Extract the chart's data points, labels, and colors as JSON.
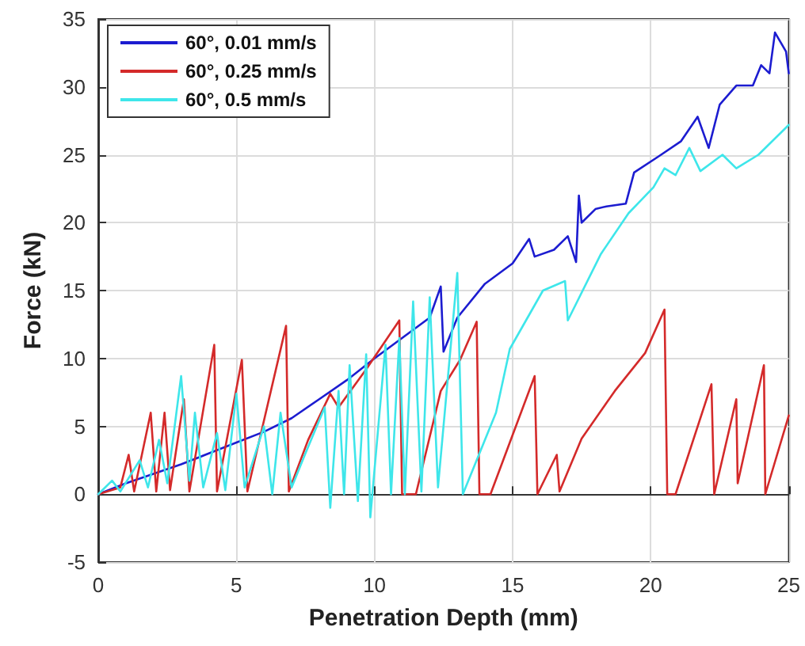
{
  "chart_data": {
    "type": "line",
    "xlabel": "Penetration Depth (mm)",
    "ylabel": "Force (kN)",
    "xlim": [
      0,
      25
    ],
    "xticks": [
      0,
      5,
      10,
      15,
      20,
      25
    ],
    "ylim": [
      -5,
      35
    ],
    "yticks": [
      -5,
      0,
      5,
      10,
      15,
      20,
      25,
      30,
      35
    ],
    "grid": true,
    "legend": "top left",
    "marker": "none",
    "line_style": "solid",
    "series": [
      {
        "name": "60°, 0.01 mm/s",
        "color": "#1c1cd0",
        "x": [
          0,
          1,
          2,
          3,
          4,
          5,
          6,
          7,
          8,
          9,
          10,
          11,
          12,
          12.4,
          12.5,
          13,
          14,
          15,
          15.6,
          15.8,
          16.5,
          17,
          17.3,
          17.4,
          17.5,
          18,
          18.4,
          19.1,
          19.4,
          20.3,
          21.1,
          21.7,
          22.1,
          22.5,
          23.1,
          23.7,
          24,
          24.3,
          24.5,
          24.9,
          25
        ],
        "values": [
          0,
          0.8,
          1.5,
          2.2,
          3,
          3.8,
          4.6,
          5.6,
          7,
          8.4,
          10,
          11.5,
          13,
          15.3,
          10.5,
          13,
          15.5,
          17,
          18.8,
          17.5,
          18,
          19,
          17.1,
          22,
          20,
          21,
          21.2,
          21.4,
          23.7,
          24.9,
          26,
          27.8,
          25.5,
          28.7,
          30.1,
          30.1,
          31.6,
          31,
          34,
          32.6,
          31
        ]
      },
      {
        "name": "60°, 0.25 mm/s",
        "color": "#d42a2a",
        "x": [
          0,
          0.8,
          1.1,
          1.3,
          1.9,
          2.1,
          2.4,
          2.6,
          3.1,
          3.3,
          4.2,
          4.3,
          5.2,
          5.4,
          6.8,
          6.9,
          7.6,
          8.4,
          8.7,
          9.7,
          10.9,
          11,
          11.5,
          12.4,
          13.1,
          13.7,
          13.8,
          14.2,
          15.1,
          15.8,
          15.9,
          16.6,
          16.7,
          17.5,
          18.7,
          19.8,
          20.5,
          20.6,
          20.9,
          22.2,
          22.3,
          23.1,
          23.15,
          24.1,
          24.15,
          25
        ],
        "values": [
          0,
          0.5,
          2.9,
          0.2,
          6,
          0.2,
          6,
          0.3,
          7,
          0.2,
          11,
          0.2,
          9.9,
          0.2,
          12.4,
          0.2,
          4,
          7.4,
          6.4,
          9.2,
          12.8,
          0,
          0,
          7.6,
          9.9,
          12.7,
          0,
          0,
          4.9,
          8.7,
          0,
          2.9,
          0.2,
          4.1,
          7.6,
          10.4,
          13.6,
          0,
          0,
          8.1,
          0,
          7,
          0.8,
          9.5,
          0,
          5.8
        ]
      },
      {
        "name": "60°, 0.5 mm/s",
        "color": "#3ee6ea",
        "x": [
          0,
          0.5,
          0.8,
          1.5,
          1.8,
          2.2,
          2.5,
          3,
          3.3,
          3.5,
          3.8,
          4.3,
          4.6,
          5,
          5.3,
          6,
          6.3,
          6.6,
          7,
          7.5,
          8.2,
          8.4,
          8.7,
          8.9,
          9.1,
          9.4,
          9.7,
          9.85,
          10.4,
          10.6,
          10.9,
          11.1,
          11.4,
          11.7,
          12,
          12.3,
          13,
          13.2,
          14.4,
          14.9,
          16.1,
          16.9,
          17,
          18.2,
          19.2,
          20.1,
          20.5,
          20.9,
          21.4,
          21.8,
          22.6,
          23.1,
          23.9,
          25
        ],
        "values": [
          0,
          1,
          0.2,
          2.5,
          0.5,
          4,
          0.8,
          8.7,
          1,
          6,
          0.5,
          4.5,
          0.3,
          7.4,
          0.5,
          5,
          0,
          6,
          0.5,
          3,
          6.4,
          -1,
          7.6,
          0,
          9.5,
          -0.5,
          10.3,
          -1.7,
          11,
          0,
          11.5,
          0,
          14.2,
          0.2,
          14.5,
          0.5,
          16.3,
          0,
          6,
          10.7,
          15,
          15.7,
          12.8,
          17.7,
          20.7,
          22.6,
          24,
          23.5,
          25.5,
          23.8,
          25,
          24,
          25,
          27.2
        ]
      }
    ]
  }
}
